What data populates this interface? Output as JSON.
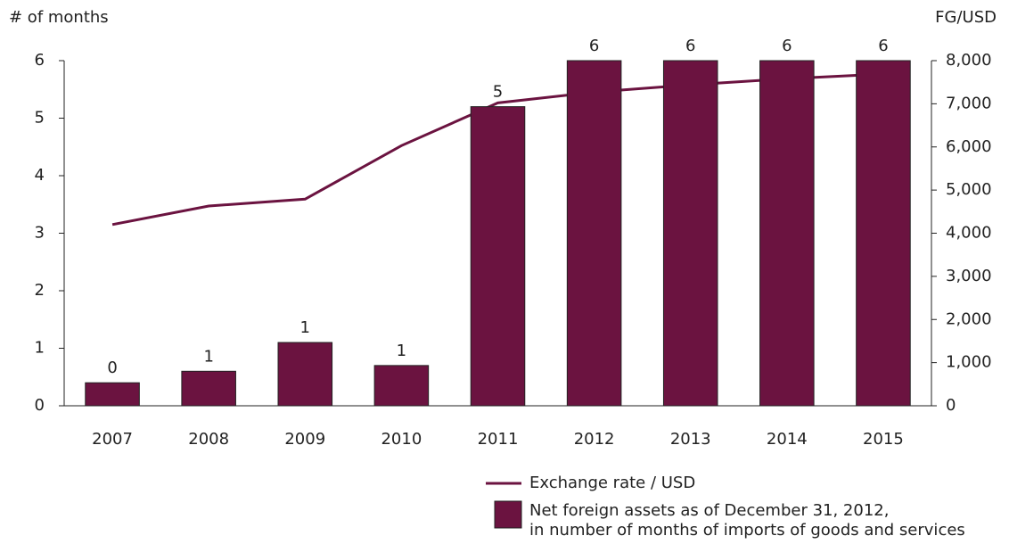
{
  "chart_data": {
    "type": "bar",
    "y_label": "# of months",
    "y2_label": "FG/USD",
    "categories": [
      "2007",
      "2008",
      "2009",
      "2010",
      "2011",
      "2012",
      "2013",
      "2014",
      "2015"
    ],
    "series": [
      {
        "name": "Exchange rate / USD",
        "type": "line",
        "axis": "y2",
        "color": "#6b1340",
        "values": [
          4200,
          4630,
          4790,
          6030,
          7020,
          7270,
          7440,
          7580,
          7690
        ]
      },
      {
        "name": "Net foreign assets as of December 31, 2012,\nin number of months of imports  of goods and services",
        "type": "bar",
        "color": "#6b1340",
        "values": [
          0.4,
          0.6,
          1.1,
          0.7,
          5.2,
          6,
          6,
          6,
          6
        ],
        "value_labels": [
          "0",
          "1",
          "1",
          "1",
          "5",
          "6",
          "6",
          "6",
          "6"
        ]
      }
    ],
    "ylim": [
      0,
      6
    ],
    "yticks": [
      0,
      1,
      2,
      3,
      4,
      5,
      6
    ],
    "y2lim": [
      0,
      8000
    ],
    "y2ticks": [
      0,
      {
        "value": 1000,
        "label": "1,000"
      },
      {
        "value": 2000,
        "label": "2,000"
      },
      {
        "value": 3000,
        "label": "3,000"
      },
      {
        "value": 4000,
        "label": "4,000"
      },
      {
        "value": 5000,
        "label": "5,000"
      },
      {
        "value": 6000,
        "label": "6,000"
      },
      {
        "value": 7000,
        "label": "7,000"
      },
      {
        "value": 8000,
        "label": "8,000"
      }
    ],
    "grid": false
  }
}
